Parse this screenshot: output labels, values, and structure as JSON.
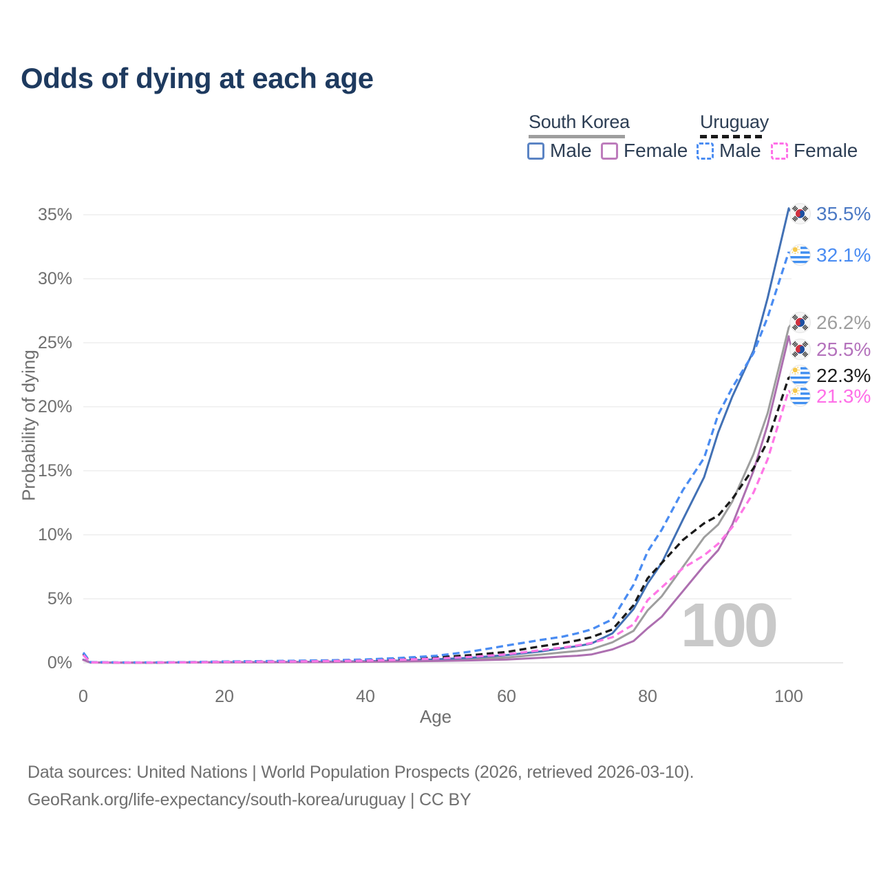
{
  "title": "Odds of dying at each age",
  "watermark": "100",
  "legend": {
    "groups": [
      {
        "label": "South Korea",
        "line_style": "solid",
        "underline_color": "#9e9e9e",
        "items": [
          {
            "label": "Male",
            "color": "#5b84c4",
            "dash": false,
            "series": "sk-male"
          },
          {
            "label": "Female",
            "color": "#bd7cbc",
            "dash": false,
            "series": "sk-female"
          }
        ]
      },
      {
        "label": "Uruguay",
        "line_style": "dashed",
        "underline_color": "#1a1a1a",
        "items": [
          {
            "label": "Male",
            "color": "#4a8cf2",
            "dash": true,
            "series": "uy-male"
          },
          {
            "label": "Female",
            "color": "#ff70e8",
            "dash": true,
            "series": "uy-female"
          }
        ]
      }
    ]
  },
  "chart_data": {
    "type": "line",
    "title": "Odds of dying at each age",
    "xlabel": "Age",
    "ylabel": "Probability of dying",
    "xlim": [
      0,
      100
    ],
    "ylim": [
      0,
      37
    ],
    "grid": "horizontal",
    "x_ticks": [
      {
        "value": 0,
        "label": "0"
      },
      {
        "value": 20,
        "label": "20"
      },
      {
        "value": 40,
        "label": "40"
      },
      {
        "value": 60,
        "label": "60"
      },
      {
        "value": 80,
        "label": "80"
      },
      {
        "value": 100,
        "label": "100"
      }
    ],
    "y_ticks": [
      {
        "value": 0,
        "label": "0%"
      },
      {
        "value": 5,
        "label": "5%"
      },
      {
        "value": 10,
        "label": "10%"
      },
      {
        "value": 15,
        "label": "15%"
      },
      {
        "value": 20,
        "label": "20%"
      },
      {
        "value": 25,
        "label": "25%"
      },
      {
        "value": 30,
        "label": "30%"
      },
      {
        "value": 35,
        "label": "35%"
      }
    ],
    "ages": [
      0,
      1,
      5,
      10,
      15,
      20,
      25,
      30,
      35,
      40,
      45,
      50,
      55,
      60,
      65,
      68,
      70,
      72,
      75,
      78,
      80,
      82,
      85,
      88,
      90,
      92,
      95,
      97,
      100
    ],
    "series": [
      {
        "id": "sk-total",
        "name": "South Korea (both sexes)",
        "country": "South Korea",
        "flag": "kr",
        "color": "#9e9e9e",
        "label_color": "#9e9e9e",
        "dash": false,
        "end_label": "26.2%",
        "values": [
          0.24,
          0.02,
          0.01,
          0.01,
          0.03,
          0.04,
          0.05,
          0.06,
          0.08,
          0.1,
          0.14,
          0.2,
          0.3,
          0.42,
          0.65,
          0.82,
          0.92,
          1.05,
          1.6,
          2.5,
          4.1,
          5.2,
          7.5,
          9.8,
          10.8,
          12.6,
          16.3,
          19.5,
          26.2
        ]
      },
      {
        "id": "sk-male",
        "name": "South Korea Male",
        "country": "South Korea",
        "flag": "kr",
        "color": "#4271b5",
        "label_color": "#4b79c4",
        "dash": false,
        "end_label": "35.5%",
        "values": [
          0.25,
          0.03,
          0.01,
          0.01,
          0.03,
          0.05,
          0.06,
          0.07,
          0.09,
          0.12,
          0.18,
          0.27,
          0.4,
          0.6,
          0.9,
          1.15,
          1.3,
          1.5,
          2.3,
          4.2,
          6.2,
          7.8,
          11.2,
          14.5,
          18.0,
          20.8,
          24.4,
          28.5,
          35.5
        ]
      },
      {
        "id": "sk-female",
        "name": "South Korea Female",
        "country": "South Korea",
        "flag": "kr",
        "color": "#ad6fb0",
        "label_color": "#b472bc",
        "dash": false,
        "end_label": "25.5%",
        "values": [
          0.22,
          0.02,
          0.01,
          0.01,
          0.02,
          0.03,
          0.04,
          0.05,
          0.06,
          0.08,
          0.11,
          0.14,
          0.19,
          0.26,
          0.4,
          0.5,
          0.55,
          0.65,
          1.05,
          1.7,
          2.7,
          3.6,
          5.6,
          7.6,
          8.8,
          10.8,
          15.0,
          18.6,
          25.5
        ]
      },
      {
        "id": "uy-total",
        "name": "Uruguay (both sexes)",
        "country": "Uruguay",
        "flag": "uy",
        "color": "#1a1a1a",
        "label_color": "#1d1d1d",
        "dash": true,
        "end_label": "22.3%",
        "values": [
          0.7,
          0.05,
          0.02,
          0.02,
          0.05,
          0.08,
          0.1,
          0.13,
          0.16,
          0.2,
          0.3,
          0.42,
          0.6,
          0.85,
          1.3,
          1.55,
          1.75,
          2.0,
          2.6,
          4.5,
          6.6,
          7.8,
          9.6,
          10.9,
          11.5,
          12.8,
          15.2,
          17.3,
          22.3
        ]
      },
      {
        "id": "uy-male",
        "name": "Uruguay Male",
        "country": "Uruguay",
        "flag": "uy",
        "color": "#4a8cf2",
        "label_color": "#4a8cf2",
        "dash": true,
        "end_label": "32.1%",
        "values": [
          0.8,
          0.06,
          0.03,
          0.03,
          0.06,
          0.1,
          0.13,
          0.16,
          0.2,
          0.26,
          0.38,
          0.55,
          0.88,
          1.35,
          1.8,
          2.05,
          2.3,
          2.6,
          3.4,
          6.1,
          8.7,
          10.4,
          13.5,
          16.0,
          19.4,
          21.5,
          24.2,
          27.0,
          32.1
        ]
      },
      {
        "id": "uy-female",
        "name": "Uruguay Female",
        "country": "Uruguay",
        "flag": "uy",
        "color": "#ff77e6",
        "label_color": "#ff6fe8",
        "dash": true,
        "end_label": "21.3%",
        "values": [
          0.6,
          0.04,
          0.02,
          0.02,
          0.04,
          0.07,
          0.09,
          0.11,
          0.14,
          0.17,
          0.24,
          0.33,
          0.46,
          0.66,
          1.0,
          1.2,
          1.35,
          1.55,
          2.0,
          3.0,
          4.9,
          5.9,
          7.4,
          8.4,
          9.3,
          10.6,
          13.3,
          15.9,
          21.3
        ]
      }
    ]
  },
  "footer": {
    "line1": "Data sources: United Nations | World Population Prospects (2026, retrieved 2026-03-10).",
    "line2": "GeoRank.org/life-expectancy/south-korea/uruguay | CC BY"
  }
}
